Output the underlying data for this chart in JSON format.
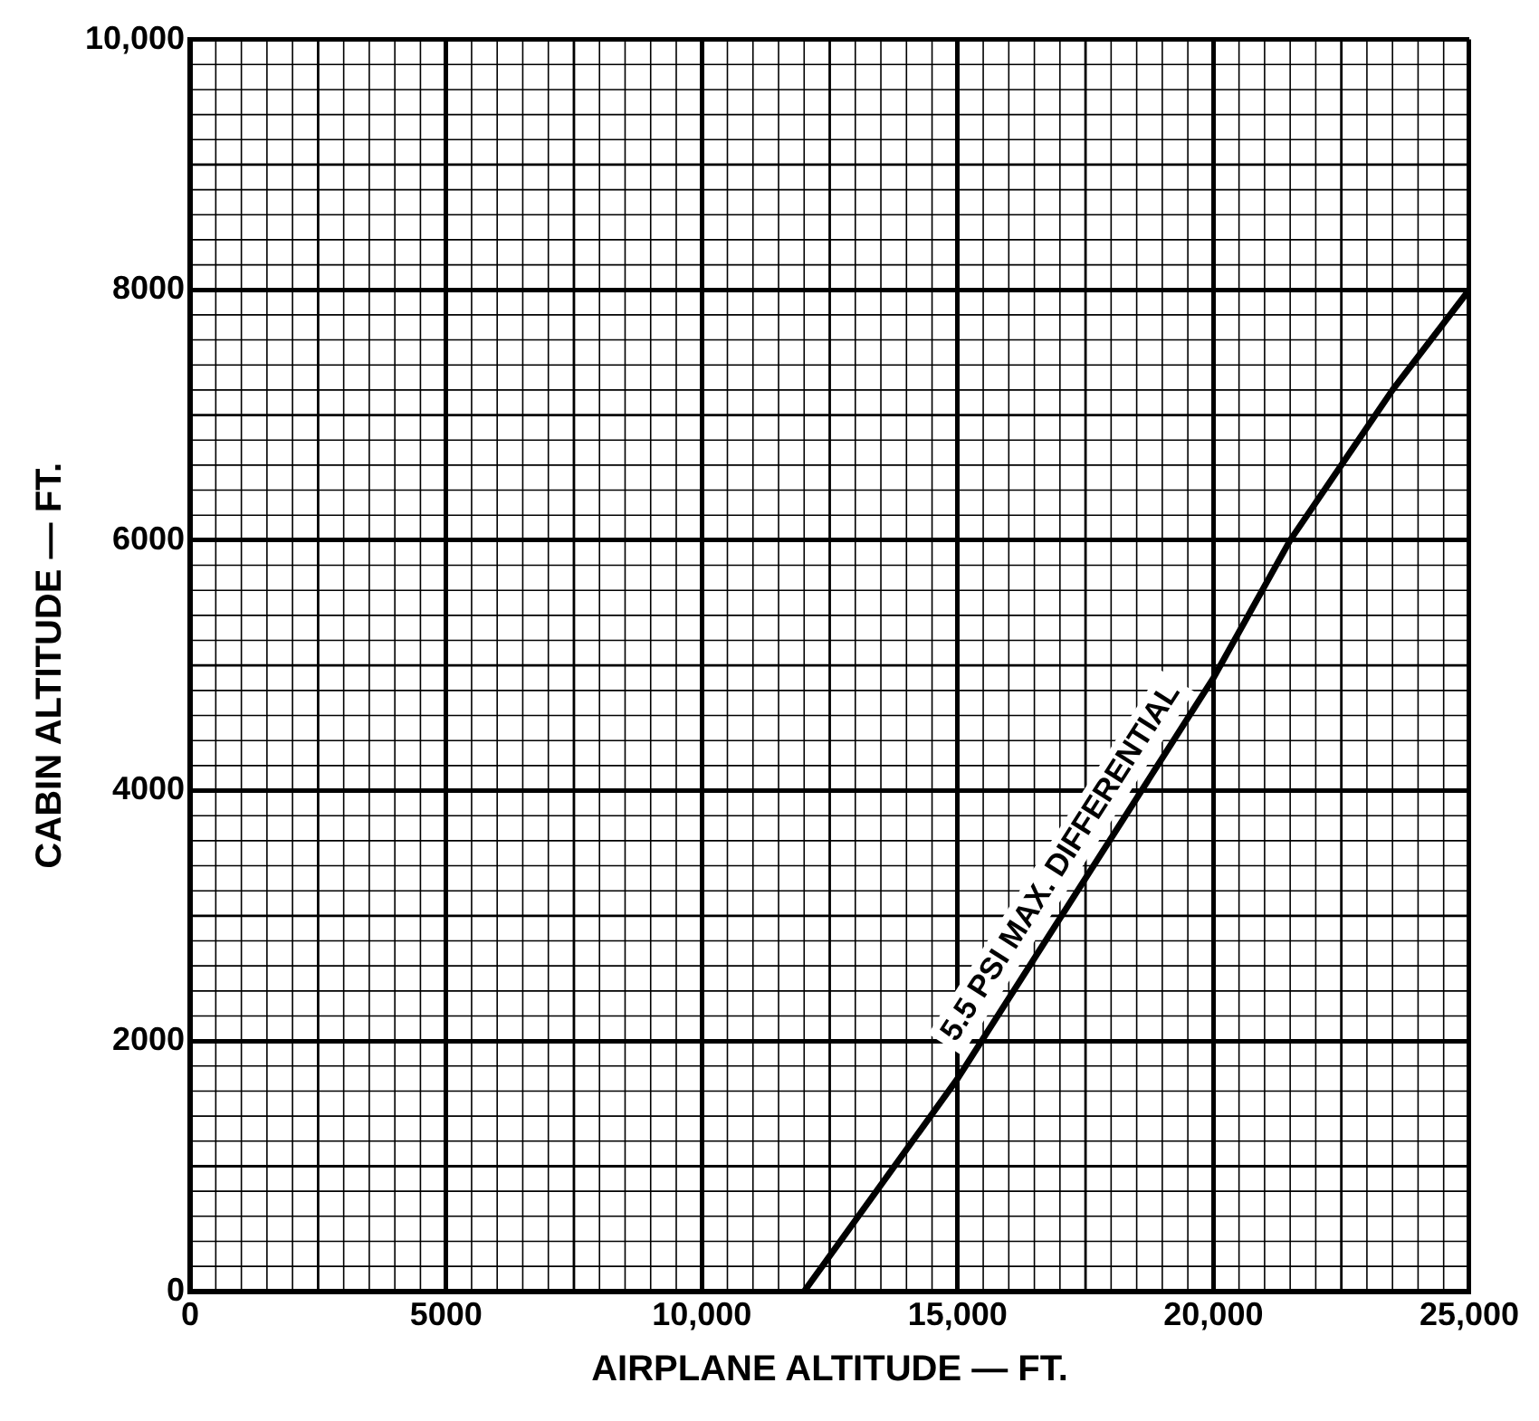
{
  "chart_data": {
    "type": "line",
    "xlabel": "AIRPLANE ALTITUDE — FT.",
    "ylabel": "CABIN ALTITUDE — FT.",
    "xlim": [
      0,
      25000
    ],
    "ylim": [
      0,
      10000
    ],
    "xticks": [
      0,
      5000,
      {
        "value": 10000,
        "label": "10,000"
      },
      {
        "value": 15000,
        "label": "15,000"
      },
      {
        "value": 20000,
        "label": "20,000"
      },
      {
        "value": 25000,
        "label": "25,000"
      }
    ],
    "yticks": [
      0,
      2000,
      4000,
      6000,
      8000,
      {
        "value": 10000,
        "label": "10,000"
      }
    ],
    "grid": true,
    "legend": false,
    "marker": "none",
    "line_style": "solid",
    "series": [
      {
        "color": "#000000",
        "x": [
          12000,
          15000,
          20000,
          21500,
          23500,
          25000
        ],
        "values": [
          0,
          1700,
          4900,
          6000,
          7200,
          8000
        ]
      }
    ],
    "annotations": [
      "5.5 PSI MAX. DIFFERENTIAL"
    ]
  }
}
